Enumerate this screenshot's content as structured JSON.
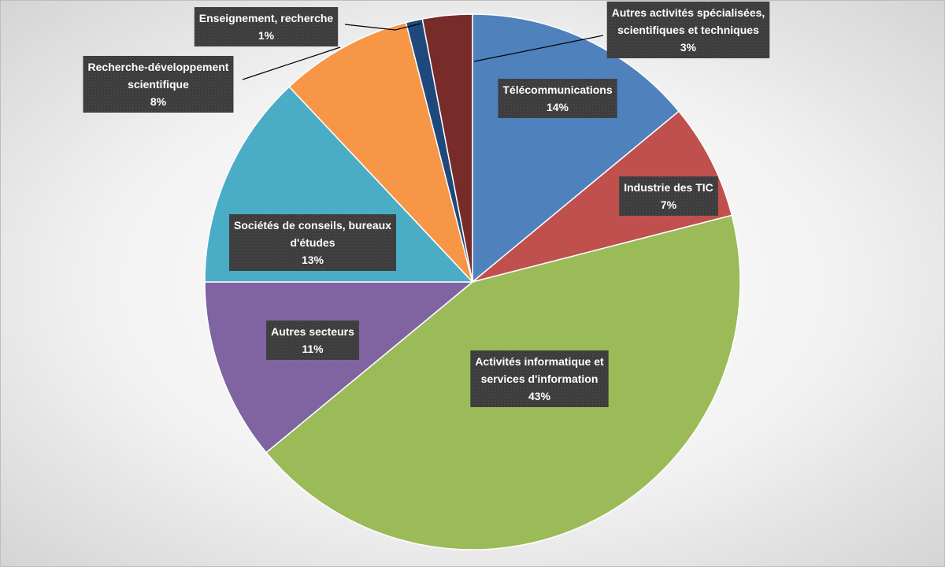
{
  "chart_data": {
    "type": "pie",
    "title": "",
    "start_angle_deg": 0,
    "direction": "clockwise",
    "slices": [
      {
        "label": "Télécommunications",
        "lines": [
          "Télécommunications"
        ],
        "value": 14,
        "value_label": "14%",
        "color": "#4f81bd"
      },
      {
        "label": "Industrie des TIC",
        "lines": [
          "Industrie des TIC"
        ],
        "value": 7,
        "value_label": "7%",
        "color": "#c0504d"
      },
      {
        "label": "Activités informatique et services d'information",
        "lines": [
          "Activités informatique et",
          "services d'information"
        ],
        "value": 43,
        "value_label": "43%",
        "color": "#9bbb59"
      },
      {
        "label": "Autres secteurs",
        "lines": [
          "Autres secteurs"
        ],
        "value": 11,
        "value_label": "11%",
        "color": "#8064a2"
      },
      {
        "label": "Sociétés de conseils, bureaux d'études",
        "lines": [
          "Sociétés de conseils, bureaux",
          "d'études"
        ],
        "value": 13,
        "value_label": "13%",
        "color": "#4bacc6"
      },
      {
        "label": "Recherche-développement scientifique",
        "lines": [
          "Recherche-développement",
          "scientifique"
        ],
        "value": 8,
        "value_label": "8%",
        "color": "#f79646"
      },
      {
        "label": "Enseignement, recherche",
        "lines": [
          "Enseignement, recherche"
        ],
        "value": 1,
        "value_label": "1%",
        "color": "#1f497d"
      },
      {
        "label": "Autres activités spécialisées, scientifiques et techniques",
        "lines": [
          "Autres activités spécialisées,",
          "scientifiques et techniques"
        ],
        "value": 3,
        "value_label": "3%",
        "color": "#772c2a"
      }
    ]
  }
}
